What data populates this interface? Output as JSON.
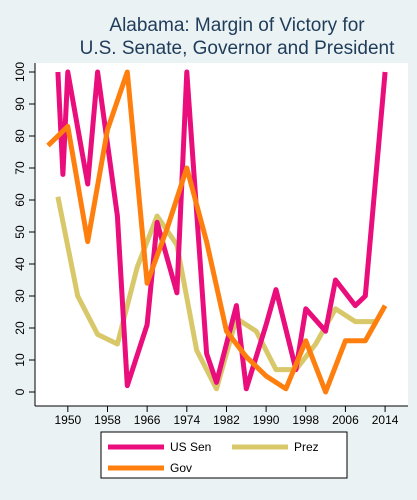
{
  "chart_data": {
    "type": "line",
    "title": [
      "Alabama: Margin of Victory for",
      "U.S. Senate, Governor and President"
    ],
    "xlabel": "",
    "ylabel": "",
    "xlim": [
      1946,
      2016
    ],
    "ylim": [
      0,
      100
    ],
    "x_ticks": [
      1950,
      1958,
      1966,
      1974,
      1982,
      1990,
      1998,
      2006,
      2014
    ],
    "y_ticks": [
      0,
      10,
      20,
      30,
      40,
      50,
      60,
      70,
      80,
      90,
      100
    ],
    "grid": false,
    "legend_position": "bottom",
    "series": [
      {
        "name": "US Sen",
        "color": "#ea0d7c",
        "points": [
          [
            1948,
            100
          ],
          [
            1949,
            68
          ],
          [
            1950,
            100
          ],
          [
            1954,
            65
          ],
          [
            1956,
            100
          ],
          [
            1960,
            55
          ],
          [
            1962,
            2
          ],
          [
            1966,
            21
          ],
          [
            1968,
            53
          ],
          [
            1972,
            31
          ],
          [
            1974,
            100
          ],
          [
            1978,
            12
          ],
          [
            1980,
            3
          ],
          [
            1984,
            27
          ],
          [
            1986,
            1
          ],
          [
            1990,
            21
          ],
          [
            1992,
            32
          ],
          [
            1996,
            7
          ],
          [
            1998,
            26
          ],
          [
            2002,
            19
          ],
          [
            2004,
            35
          ],
          [
            2008,
            27
          ],
          [
            2010,
            30
          ],
          [
            2014,
            100
          ]
        ]
      },
      {
        "name": "Prez",
        "color": "#d9c86a",
        "points": [
          [
            1948,
            61
          ],
          [
            1952,
            30
          ],
          [
            1956,
            18
          ],
          [
            1960,
            15
          ],
          [
            1964,
            39
          ],
          [
            1968,
            55
          ],
          [
            1972,
            46
          ],
          [
            1976,
            13
          ],
          [
            1980,
            1
          ],
          [
            1984,
            23
          ],
          [
            1988,
            19
          ],
          [
            1992,
            7
          ],
          [
            1996,
            7
          ],
          [
            2000,
            15
          ],
          [
            2004,
            26
          ],
          [
            2008,
            22
          ],
          [
            2012,
            22
          ]
        ]
      },
      {
        "name": "Gov",
        "color": "#ff7f0e",
        "points": [
          [
            1946,
            77
          ],
          [
            1950,
            83
          ],
          [
            1954,
            47
          ],
          [
            1958,
            82
          ],
          [
            1962,
            100
          ],
          [
            1966,
            34
          ],
          [
            1970,
            51
          ],
          [
            1974,
            70
          ],
          [
            1978,
            47
          ],
          [
            1982,
            19
          ],
          [
            1986,
            11
          ],
          [
            1990,
            5
          ],
          [
            1994,
            1
          ],
          [
            1998,
            16
          ],
          [
            2002,
            0
          ],
          [
            2006,
            16
          ],
          [
            2010,
            16
          ],
          [
            2014,
            27
          ]
        ]
      }
    ],
    "legend": [
      {
        "label": "US Sen",
        "color": "#ea0d7c"
      },
      {
        "label": "Prez",
        "color": "#d9c86a"
      },
      {
        "label": "Gov",
        "color": "#ff7f0e"
      }
    ]
  }
}
